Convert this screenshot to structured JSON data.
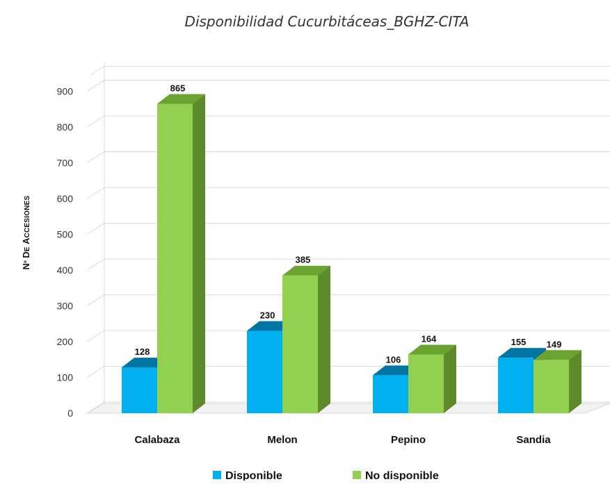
{
  "chart_data": {
    "type": "bar",
    "title": "Disponibilidad Cucurbitáceas_BGHZ-CITA",
    "ylabel": "Nº DE ACCESIONES",
    "xlabel": "",
    "categories": [
      "Calabaza",
      "Melon",
      "Pepino",
      "Sandia"
    ],
    "ylim": [
      0,
      900
    ],
    "yticks": [
      0,
      100,
      200,
      300,
      400,
      500,
      600,
      700,
      800,
      900
    ],
    "grid": true,
    "legend": "bottom",
    "series": [
      {
        "name": "Disponible",
        "values": [
          128,
          230,
          106,
          155
        ],
        "color": "#00B0F0",
        "top_color": "#0074A3",
        "side_color": "#00688F"
      },
      {
        "name": "No disponible",
        "values": [
          865,
          385,
          164,
          149
        ],
        "color": "#92D050",
        "top_color": "#6AA330",
        "side_color": "#5E8A2C"
      }
    ]
  }
}
